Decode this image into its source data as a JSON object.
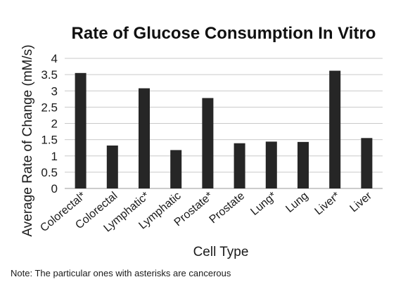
{
  "chart_data": {
    "type": "bar",
    "title": "Rate of Glucose Consumption In Vitro",
    "xlabel": "Cell Type",
    "ylabel": "Average Rate of Change (mM/s)",
    "categories": [
      "Colorectal*",
      "Colorectal",
      "Lymphatic*",
      "Lymphatic",
      "Prostate*",
      "Prostate",
      "Lung*",
      "Lung",
      "Liver*",
      "Liver"
    ],
    "values": [
      3.55,
      1.32,
      3.08,
      1.18,
      2.78,
      1.39,
      1.44,
      1.43,
      3.62,
      1.55
    ],
    "yticks": [
      "0",
      "0.5",
      "1",
      "1.5",
      "2",
      "2.5",
      "3",
      "3.5",
      "4"
    ],
    "ylim": [
      0,
      4
    ],
    "grid": true,
    "bar_color": "#262626",
    "note": "Note: The particular ones with asterisks are cancerous"
  }
}
